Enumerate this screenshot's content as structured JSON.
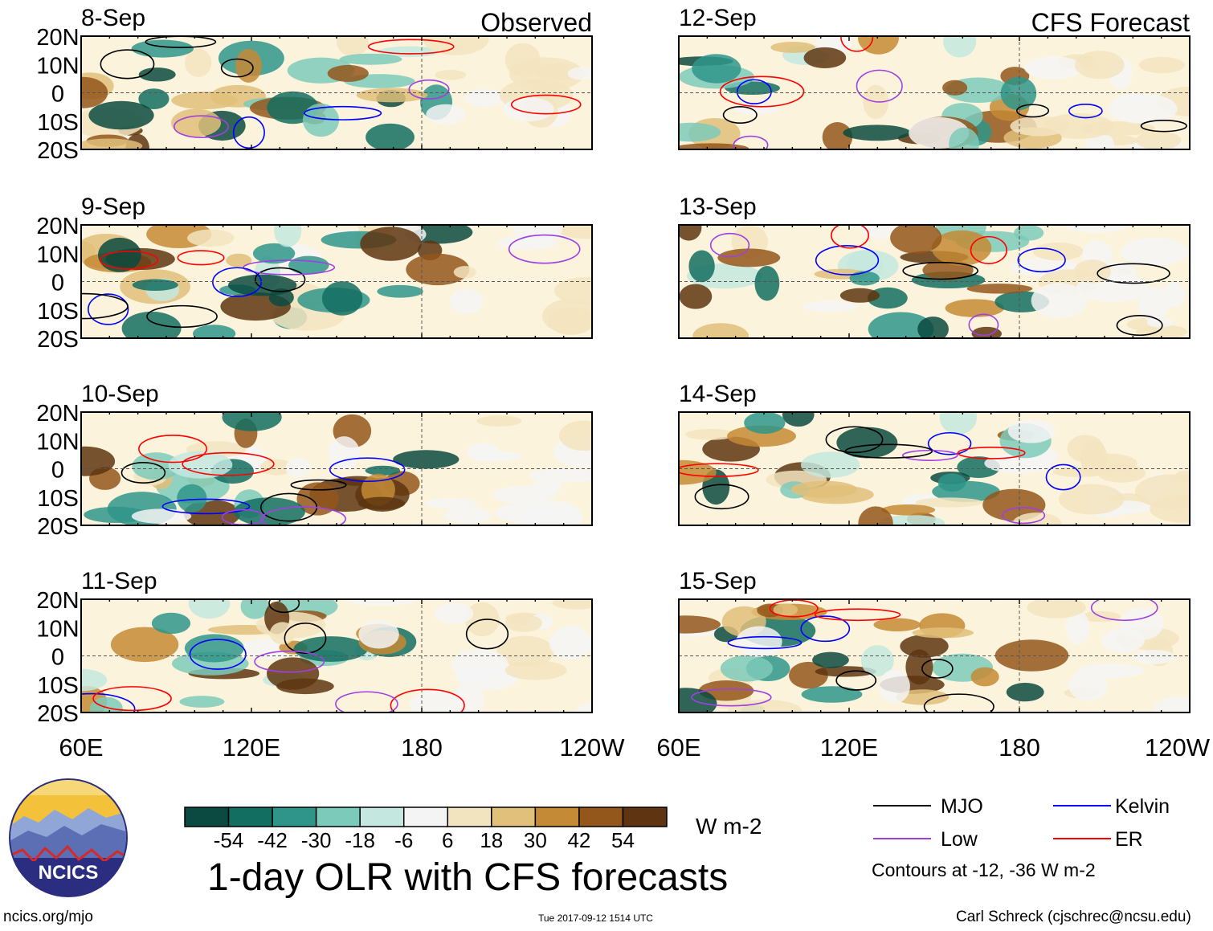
{
  "chart_data": {
    "type": "heatmap",
    "title": "1-day OLR with CFS forecasts",
    "units": "W m-2",
    "column_titles": {
      "left": "Observed",
      "right": "CFS Forecast"
    },
    "panels": [
      {
        "date": "8-Sep",
        "column": "left",
        "source": "Observed"
      },
      {
        "date": "9-Sep",
        "column": "left",
        "source": "Observed"
      },
      {
        "date": "10-Sep",
        "column": "left",
        "source": "Observed"
      },
      {
        "date": "11-Sep",
        "column": "left",
        "source": "Observed"
      },
      {
        "date": "12-Sep",
        "column": "right",
        "source": "CFS Forecast"
      },
      {
        "date": "13-Sep",
        "column": "right",
        "source": "CFS Forecast"
      },
      {
        "date": "14-Sep",
        "column": "right",
        "source": "CFS Forecast"
      },
      {
        "date": "15-Sep",
        "column": "right",
        "source": "CFS Forecast"
      }
    ],
    "x_ticks": [
      "60E",
      "120E",
      "180",
      "120W"
    ],
    "x_range_deg_east": [
      60,
      240
    ],
    "y_ticks": [
      "20N",
      "10N",
      "0",
      "10S",
      "20S"
    ],
    "y_range_deg": [
      -20,
      20
    ],
    "colorbar": {
      "labels": [
        "-54",
        "-42",
        "-30",
        "-18",
        "-6",
        "6",
        "18",
        "30",
        "42",
        "54"
      ],
      "colors": [
        "#0a4a40",
        "#136e62",
        "#2f958a",
        "#7ccaba",
        "#c4e8df",
        "#f4f4f4",
        "#f3e4c0",
        "#e0c07a",
        "#c48a35",
        "#93561b",
        "#5e3510"
      ]
    },
    "contour_legend": [
      {
        "label": "MJO",
        "color": "#000000"
      },
      {
        "label": "Kelvin",
        "color": "#0000ff"
      },
      {
        "label": "Low",
        "color": "#a040e0"
      },
      {
        "label": "ER",
        "color": "#ff0000"
      }
    ],
    "contour_note": "Contours at -12, -36 W m-2"
  },
  "footer": {
    "site": "ncics.org/mjo",
    "timestamp": "Tue 2017-09-12 1514 UTC",
    "author": "Carl Schreck (cjschrec@ncsu.edu)",
    "logo_text": "NCICS"
  }
}
